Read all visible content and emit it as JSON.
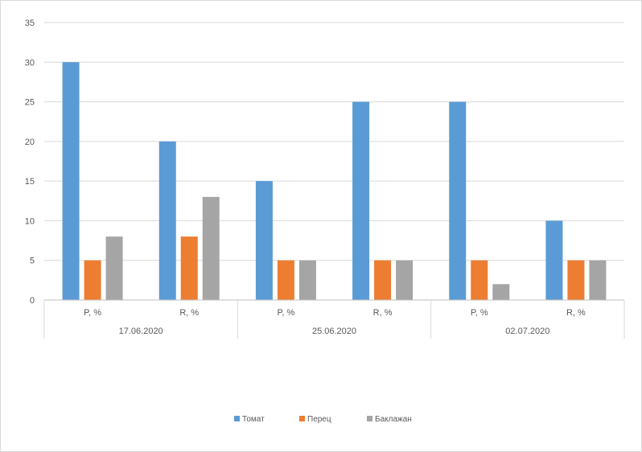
{
  "chart_data": {
    "type": "bar",
    "groups": [
      {
        "label": "17.06.2020",
        "categories": [
          "P, %",
          "R, %"
        ]
      },
      {
        "label": "25.06.2020",
        "categories": [
          "P, %",
          "R, %"
        ]
      },
      {
        "label": "02.07.2020",
        "categories": [
          "P, %",
          "R, %"
        ]
      }
    ],
    "categories": [
      "P, %",
      "R, %",
      "P, %",
      "R, %",
      "P, %",
      "R, %"
    ],
    "series": [
      {
        "name": "Томат",
        "color": "#5b9bd5",
        "values": [
          30,
          20,
          15,
          25,
          25,
          10
        ]
      },
      {
        "name": "Перец",
        "color": "#ed7d31",
        "values": [
          5,
          8,
          5,
          5,
          5,
          5
        ]
      },
      {
        "name": "Баклажан",
        "color": "#a5a5a5",
        "values": [
          8,
          13,
          5,
          5,
          2,
          5
        ]
      }
    ],
    "ylim": [
      0,
      35
    ],
    "yticks": [
      0,
      5,
      10,
      15,
      20,
      25,
      30,
      35
    ],
    "grid": true,
    "legend": "bottom"
  }
}
